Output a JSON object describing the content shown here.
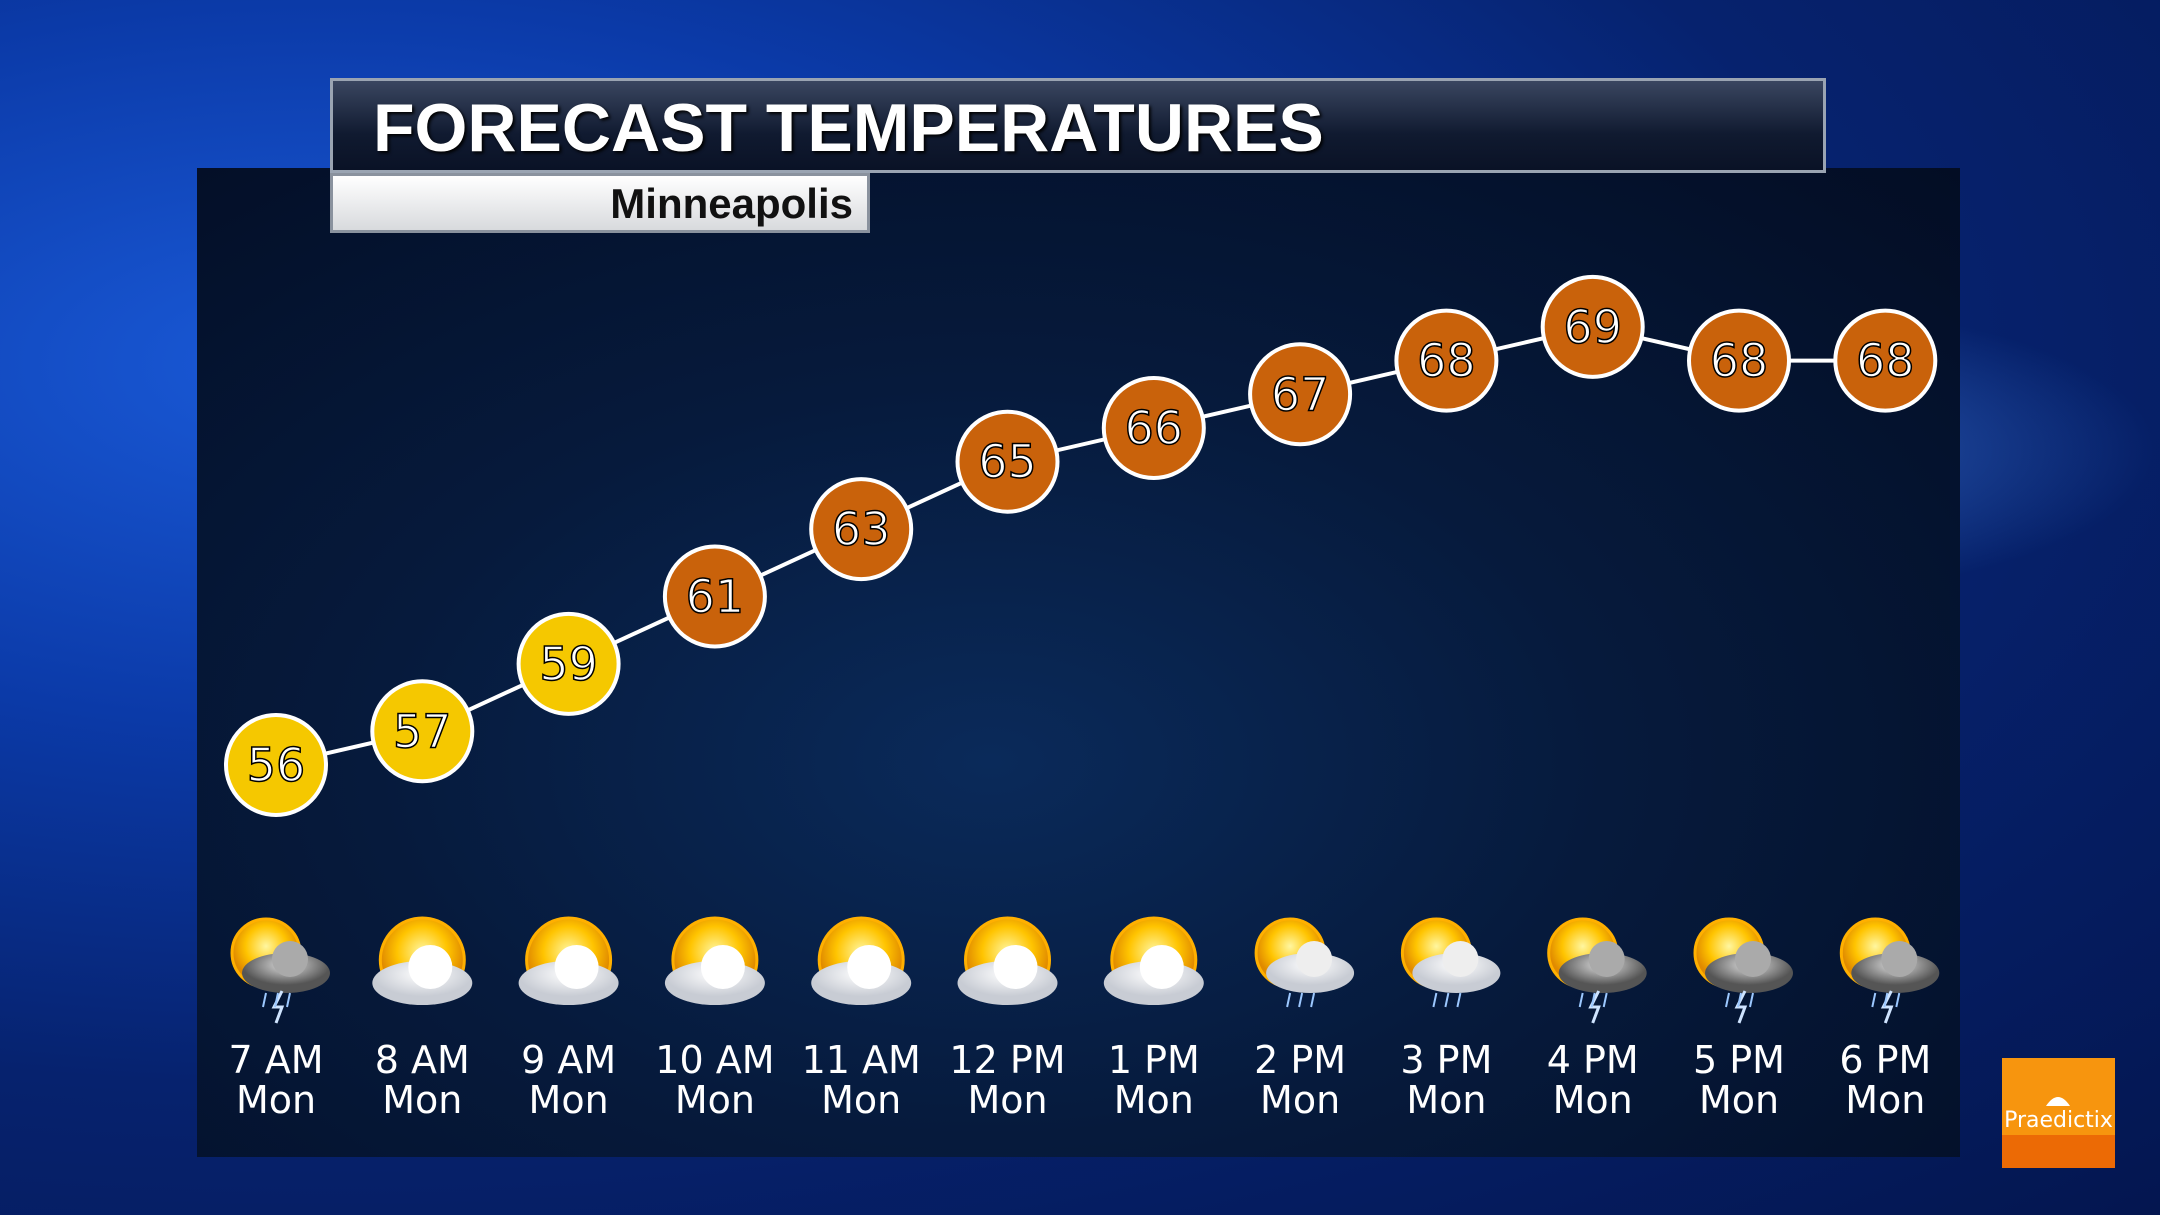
{
  "header": {
    "title": "FORECAST TEMPERATURES",
    "location": "Minneapolis"
  },
  "logo": {
    "text": "Praedictix",
    "color": "#f7950e"
  },
  "colors": {
    "warm": "#f5c800",
    "hot": "#c9620b",
    "line": "#ffffff"
  },
  "chart_data": {
    "type": "line",
    "title": "FORECAST TEMPERATURES",
    "subtitle": "Minneapolis",
    "categories": [
      "7 AM Mon",
      "8 AM Mon",
      "9 AM Mon",
      "10 AM Mon",
      "11 AM Mon",
      "12 PM Mon",
      "1 PM Mon",
      "2 PM Mon",
      "3 PM Mon",
      "4 PM Mon",
      "5 PM Mon",
      "6 PM Mon"
    ],
    "hours": [
      "7 AM",
      "8 AM",
      "9 AM",
      "10 AM",
      "11 AM",
      "12 PM",
      "1 PM",
      "2 PM",
      "3 PM",
      "4 PM",
      "5 PM",
      "6 PM"
    ],
    "day": "Mon",
    "values": [
      56,
      57,
      59,
      61,
      63,
      65,
      66,
      67,
      68,
      69,
      68,
      68
    ],
    "icons": [
      "thunderstorm-partly-sunny-icon",
      "partly-sunny-icon",
      "partly-sunny-icon",
      "partly-sunny-icon",
      "partly-sunny-icon",
      "partly-sunny-icon",
      "partly-sunny-icon",
      "rain-partly-sunny-icon",
      "rain-partly-sunny-icon",
      "thunderstorm-partly-sunny-icon",
      "thunderstorm-partly-sunny-icon",
      "thunderstorm-partly-sunny-icon"
    ],
    "grid": false
  }
}
